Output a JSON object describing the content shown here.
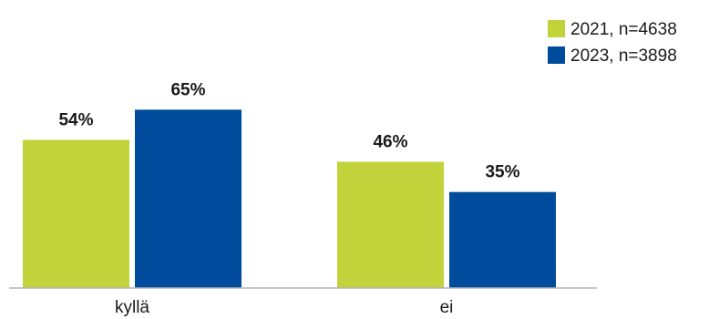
{
  "chart_data": {
    "type": "bar",
    "categories": [
      "kyllä",
      "ei"
    ],
    "series": [
      {
        "name": "2021, n=4638",
        "color": "#c2d23a",
        "values": [
          54,
          46
        ]
      },
      {
        "name": "2023, n=3898",
        "color": "#004b9b",
        "values": [
          65,
          35
        ]
      }
    ],
    "value_suffix": "%",
    "ylim": [
      0,
      100
    ],
    "grid": false,
    "legend_position": "top-right"
  }
}
